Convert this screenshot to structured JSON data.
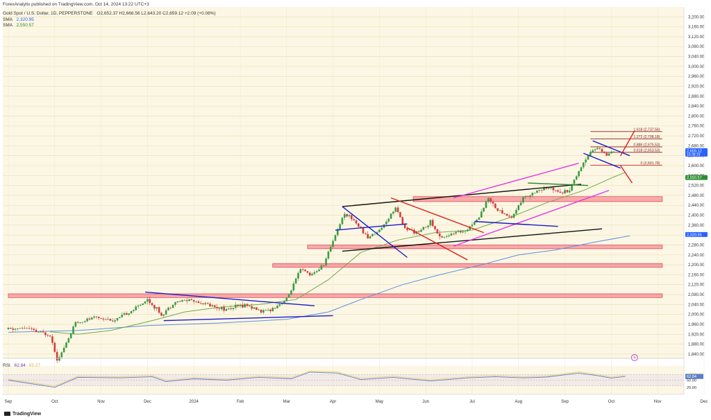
{
  "header": {
    "published": "ForexAnalytix published on TradingView.com, Oct 14, 2024 13:22 UTC+3",
    "symbol": "Gold Spot / U.S. Dollar, 1D, PEPPERSTONE",
    "ohlc": "O2,652.37 H2,666.56 L2,643.20 C2,659.12 +2.09 (+0.08%)",
    "sma1_label": "SMA",
    "sma1_value": "2,320.95",
    "sma2_label": "SMA",
    "sma2_value": "2,550.57",
    "rsi_label": "RSI",
    "rsi_value1": "62.84",
    "rsi_value2": "65.27"
  },
  "footer": {
    "brand": "TradingView"
  },
  "chart_data": {
    "type": "candlestick",
    "yticks": [
      "3,200.00",
      "3,160.00",
      "3,120.00",
      "3,080.00",
      "3,040.00",
      "3,000.00",
      "2,960.00",
      "2,920.00",
      "2,880.00",
      "2,840.00",
      "2,800.00",
      "2,760.00",
      "2,720.00",
      "2,680.00",
      "2,640.00",
      "2,600.00",
      "2,560.00",
      "2,520.00",
      "2,480.00",
      "2,440.00",
      "2,400.00",
      "2,360.00",
      "2,320.00",
      "2,280.00",
      "2,240.00",
      "2,200.00",
      "2,160.00",
      "2,120.00",
      "2,080.00",
      "2,040.00",
      "2,000.00",
      "1,960.00",
      "1,920.00",
      "1,880.00",
      "1,840.00"
    ],
    "yrange": [
      1823,
      3240
    ],
    "xlabels": [
      {
        "t": "Sep",
        "m": 0
      },
      {
        "t": "Oct",
        "m": 1
      },
      {
        "t": "Nov",
        "m": 2
      },
      {
        "t": "Dec",
        "m": 3
      },
      {
        "t": "2024",
        "m": 4
      },
      {
        "t": "Feb",
        "m": 5
      },
      {
        "t": "Mar",
        "m": 6
      },
      {
        "t": "Apr",
        "m": 7
      },
      {
        "t": "May",
        "m": 8
      },
      {
        "t": "Jun",
        "m": 9
      },
      {
        "t": "Jul",
        "m": 10
      },
      {
        "t": "Aug",
        "m": 11
      },
      {
        "t": "Sep",
        "m": 12
      },
      {
        "t": "Oct",
        "m": 13
      },
      {
        "t": "Nov",
        "m": 14
      },
      {
        "t": "Dec",
        "m": 15
      }
    ],
    "price_path": [
      [
        0,
        1940
      ],
      [
        0.4,
        1945
      ],
      [
        0.6,
        1930
      ],
      [
        0.9,
        1918
      ],
      [
        1.05,
        1822
      ],
      [
        1.15,
        1845
      ],
      [
        1.45,
        1965
      ],
      [
        1.9,
        1990
      ],
      [
        2.3,
        1975
      ],
      [
        2.7,
        2020
      ],
      [
        3.0,
        2060
      ],
      [
        3.3,
        2000
      ],
      [
        3.6,
        2050
      ],
      [
        3.9,
        2060
      ],
      [
        4.3,
        2040
      ],
      [
        4.7,
        2020
      ],
      [
        5.1,
        2040
      ],
      [
        5.5,
        2010
      ],
      [
        5.7,
        2025
      ],
      [
        6.0,
        2060
      ],
      [
        6.3,
        2180
      ],
      [
        6.55,
        2160
      ],
      [
        6.8,
        2200
      ],
      [
        7.0,
        2300
      ],
      [
        7.25,
        2410
      ],
      [
        7.45,
        2380
      ],
      [
        7.75,
        2310
      ],
      [
        8.0,
        2340
      ],
      [
        8.35,
        2430
      ],
      [
        8.55,
        2345
      ],
      [
        8.85,
        2330
      ],
      [
        9.1,
        2375
      ],
      [
        9.3,
        2310
      ],
      [
        9.6,
        2325
      ],
      [
        9.85,
        2340
      ],
      [
        10.1,
        2380
      ],
      [
        10.35,
        2470
      ],
      [
        10.55,
        2420
      ],
      [
        10.85,
        2390
      ],
      [
        11.1,
        2470
      ],
      [
        11.4,
        2500
      ],
      [
        11.7,
        2510
      ],
      [
        11.95,
        2495
      ],
      [
        12.1,
        2505
      ],
      [
        12.3,
        2580
      ],
      [
        12.55,
        2660
      ],
      [
        12.75,
        2670
      ],
      [
        12.9,
        2640
      ],
      [
        13.0,
        2650
      ],
      [
        13.1,
        2659
      ]
    ],
    "sma_fast": [
      [
        0.9,
        1930
      ],
      [
        1.5,
        1920
      ],
      [
        2.2,
        1935
      ],
      [
        3.1,
        1975
      ],
      [
        3.8,
        2010
      ],
      [
        4.6,
        2030
      ],
      [
        5.4,
        2040
      ],
      [
        6.2,
        2060
      ],
      [
        6.9,
        2140
      ],
      [
        7.6,
        2250
      ],
      [
        8.4,
        2300
      ],
      [
        9.2,
        2330
      ],
      [
        10.0,
        2340
      ],
      [
        10.8,
        2390
      ],
      [
        11.6,
        2450
      ],
      [
        12.4,
        2500
      ],
      [
        13.0,
        2550
      ],
      [
        13.3,
        2573
      ]
    ],
    "sma_slow": [
      [
        0,
        1928
      ],
      [
        1.5,
        1935
      ],
      [
        3.0,
        1955
      ],
      [
        4.5,
        1965
      ],
      [
        6.0,
        1980
      ],
      [
        6.9,
        2010
      ],
      [
        7.6,
        2060
      ],
      [
        8.5,
        2120
      ],
      [
        9.3,
        2160
      ],
      [
        10.2,
        2200
      ],
      [
        11.0,
        2240
      ],
      [
        11.8,
        2260
      ],
      [
        12.6,
        2290
      ],
      [
        13.4,
        2317
      ]
    ],
    "rsi": [
      [
        0,
        50
      ],
      [
        1.0,
        25
      ],
      [
        1.5,
        60
      ],
      [
        2.4,
        58
      ],
      [
        3.1,
        62
      ],
      [
        3.4,
        45
      ],
      [
        4.0,
        55
      ],
      [
        4.7,
        50
      ],
      [
        5.4,
        60
      ],
      [
        6.1,
        55
      ],
      [
        6.5,
        78
      ],
      [
        7.1,
        75
      ],
      [
        7.6,
        52
      ],
      [
        8.3,
        60
      ],
      [
        9.1,
        47
      ],
      [
        9.9,
        58
      ],
      [
        10.5,
        62
      ],
      [
        11.1,
        58
      ],
      [
        11.6,
        61
      ],
      [
        12.3,
        75
      ],
      [
        12.7,
        66
      ],
      [
        13.0,
        57
      ],
      [
        13.3,
        63
      ]
    ],
    "rsi_levels": [
      {
        "label": "65.27",
        "v": 65.27
      },
      {
        "label": "62.84",
        "v": 62.84
      },
      {
        "label": "50.00",
        "v": 50
      },
      {
        "label": "25.00",
        "v": 25
      }
    ],
    "price_tags": [
      {
        "label": "2,659.12",
        "v": 2659,
        "sub": "10:38:19",
        "color": "#2962ff"
      },
      {
        "label": "2,550.57",
        "v": 2550.57,
        "color": "#2f8c2f"
      },
      {
        "label": "2,320.95",
        "v": 2320.95,
        "color": "#2962ff"
      }
    ],
    "fib_levels": [
      {
        "label": "1.618 (2,737.56)",
        "v": 2737.56
      },
      {
        "label": "1.272 (2,708.18)",
        "v": 2708.18
      },
      {
        "label": "0.886 (2,675.53)",
        "v": 2675.53
      },
      {
        "label": "0.618 (2,653.53)",
        "v": 2653.53
      },
      {
        "label": "0 (2,601.78)",
        "v": 2601.78
      }
    ],
    "zones": [
      {
        "v1": 2455,
        "v2": 2475,
        "x1": 8.73,
        "x2": 14.1
      },
      {
        "v1": 2265,
        "v2": 2280,
        "x1": 6.45,
        "x2": 14.1
      },
      {
        "v1": 2190,
        "v2": 2205,
        "x1": 5.7,
        "x2": 14.1
      },
      {
        "v1": 2068,
        "v2": 2083,
        "x1": 0,
        "x2": 14.1
      }
    ],
    "trendlines": [
      {
        "color": "#1a1acd",
        "p": [
          [
            2.95,
            2090
          ],
          [
            6.6,
            2035
          ]
        ]
      },
      {
        "color": "#1a1acd",
        "p": [
          [
            3.35,
            1975
          ],
          [
            7.0,
            1995
          ]
        ]
      },
      {
        "color": "#111111",
        "p": [
          [
            7.2,
            2435
          ],
          [
            12.35,
            2525
          ]
        ]
      },
      {
        "color": "#111111",
        "p": [
          [
            7.2,
            2255
          ],
          [
            12.8,
            2345
          ]
        ]
      },
      {
        "color": "#1a1acd",
        "p": [
          [
            7.2,
            2435
          ],
          [
            8.6,
            2230
          ]
        ]
      },
      {
        "color": "#1a1acd",
        "p": [
          [
            7.05,
            2340
          ],
          [
            8.6,
            2365
          ]
        ]
      },
      {
        "color": "#e01a1a",
        "p": [
          [
            8.25,
            2470
          ],
          [
            10.25,
            2330
          ]
        ]
      },
      {
        "color": "#e01a1a",
        "p": [
          [
            8.6,
            2350
          ],
          [
            9.9,
            2220
          ]
        ]
      },
      {
        "color": "#e632e6",
        "p": [
          [
            9.6,
            2275
          ],
          [
            12.95,
            2500
          ]
        ]
      },
      {
        "color": "#e632e6",
        "p": [
          [
            9.6,
            2470
          ],
          [
            12.3,
            2610
          ]
        ]
      },
      {
        "color": "#1a1acd",
        "p": [
          [
            10.05,
            2375
          ],
          [
            11.85,
            2355
          ]
        ]
      },
      {
        "color": "#2f8c2f",
        "p": [
          [
            11.2,
            2530
          ],
          [
            12.5,
            2520
          ]
        ]
      },
      {
        "color": "#1a1acd",
        "p": [
          [
            12.6,
            2700
          ],
          [
            13.4,
            2640
          ]
        ]
      },
      {
        "color": "#1a1acd",
        "p": [
          [
            12.4,
            2650
          ],
          [
            13.2,
            2590
          ]
        ]
      },
      {
        "color": "#e01a1a",
        "p": [
          [
            13.2,
            2640
          ],
          [
            13.5,
            2740
          ]
        ]
      },
      {
        "color": "#e01a1a",
        "p": [
          [
            13.2,
            2600
          ],
          [
            13.45,
            2530
          ]
        ]
      }
    ]
  }
}
